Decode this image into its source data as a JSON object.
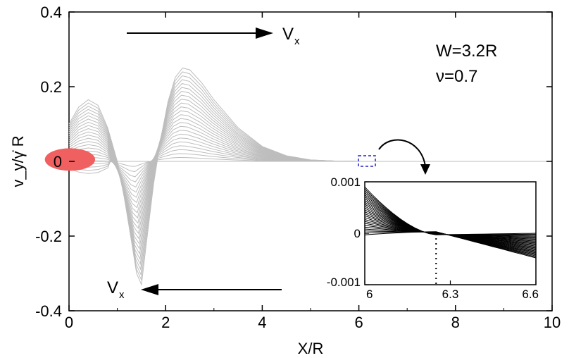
{
  "chart_data": [
    {
      "type": "line",
      "xlabel": "X/R",
      "ylabel": "v_y/γ̇ R",
      "xlim": [
        0,
        10
      ],
      "ylim": [
        -0.4,
        0.4
      ],
      "xticks": [
        "0",
        "2",
        "4",
        "6",
        "8",
        "10"
      ],
      "yticks": [
        "0.4",
        "0.2",
        "0",
        "-0.2",
        "-0.4"
      ],
      "grid": false,
      "series_color": "#bdbdbd",
      "series_count": 24,
      "envelope": {
        "x": [
          0,
          0.2,
          0.4,
          0.6,
          0.8,
          1.0,
          1.1,
          1.2,
          1.3,
          1.4,
          1.5,
          1.6,
          1.75,
          1.9,
          2.05,
          2.2,
          2.35,
          2.5,
          2.75,
          3.0,
          3.5,
          4.0,
          4.5,
          5.0,
          5.5,
          6.0,
          7.0,
          8.0,
          9.0,
          10.0
        ],
        "y": [
          0.1,
          0.145,
          0.165,
          0.15,
          0.09,
          0.0,
          -0.06,
          -0.14,
          -0.22,
          -0.3,
          -0.33,
          -0.22,
          -0.06,
          0.06,
          0.16,
          0.225,
          0.25,
          0.245,
          0.21,
          0.165,
          0.09,
          0.04,
          0.015,
          0.004,
          0.001,
          0.0,
          0.0,
          0.0,
          0.0,
          0.0
        ]
      },
      "annotations": {
        "vx_top": "V",
        "vx_top_sub": "x",
        "vx_bottom": "V",
        "vx_bottom_sub": "x",
        "width_text": "W=3.2R",
        "nu_text": "ν=0.7"
      },
      "particle_color": "#f06060",
      "zoom_box_color": "#2222cc",
      "zoom_box_x": [
        5.95,
        6.3
      ]
    },
    {
      "type": "line",
      "role": "inset",
      "xlim": [
        6,
        6.6
      ],
      "ylim": [
        -0.001,
        0.001
      ],
      "xticks": [
        "6",
        "6.3",
        "6.6"
      ],
      "yticks": [
        "0.001",
        "0",
        "-0.001"
      ],
      "crossing_x": 6.25,
      "series_color": "#000000",
      "series_count": 26,
      "y_start": [
        -3e-05,
        0.0009
      ],
      "y_end": [
        -0.00048,
        0.0
      ]
    }
  ]
}
